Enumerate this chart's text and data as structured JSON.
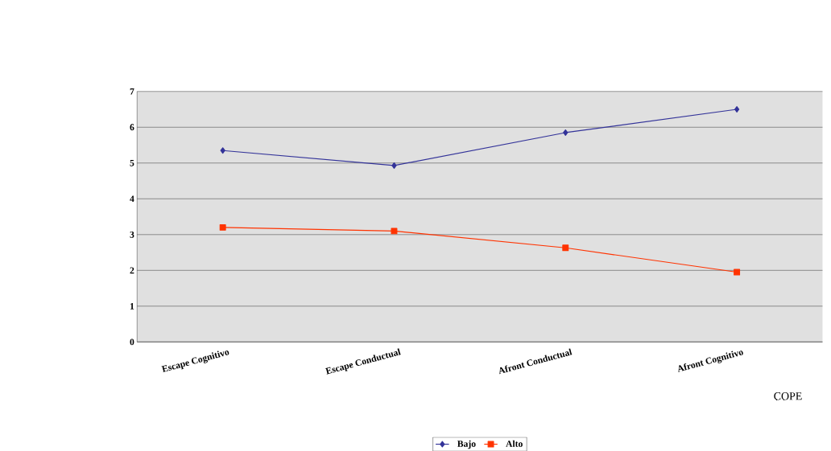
{
  "chart_data": {
    "type": "line",
    "categories": [
      "Escape  Cognitivo",
      "Escape  Conductual",
      "Afront  Conductual",
      "Afront  Cognitivo"
    ],
    "series": [
      {
        "name": "Bajo",
        "color": "#333399",
        "marker": "diamond",
        "values": [
          5.35,
          4.93,
          5.85,
          6.5
        ]
      },
      {
        "name": "Alto",
        "color": "#ff3300",
        "marker": "square",
        "values": [
          3.2,
          3.1,
          2.63,
          1.95
        ]
      }
    ],
    "ylim": [
      0,
      7
    ],
    "yticks": [
      0,
      1,
      2,
      3,
      4,
      5,
      6,
      7
    ],
    "grid": "y",
    "legend": "bottom",
    "annotations": [
      "COPE"
    ]
  }
}
